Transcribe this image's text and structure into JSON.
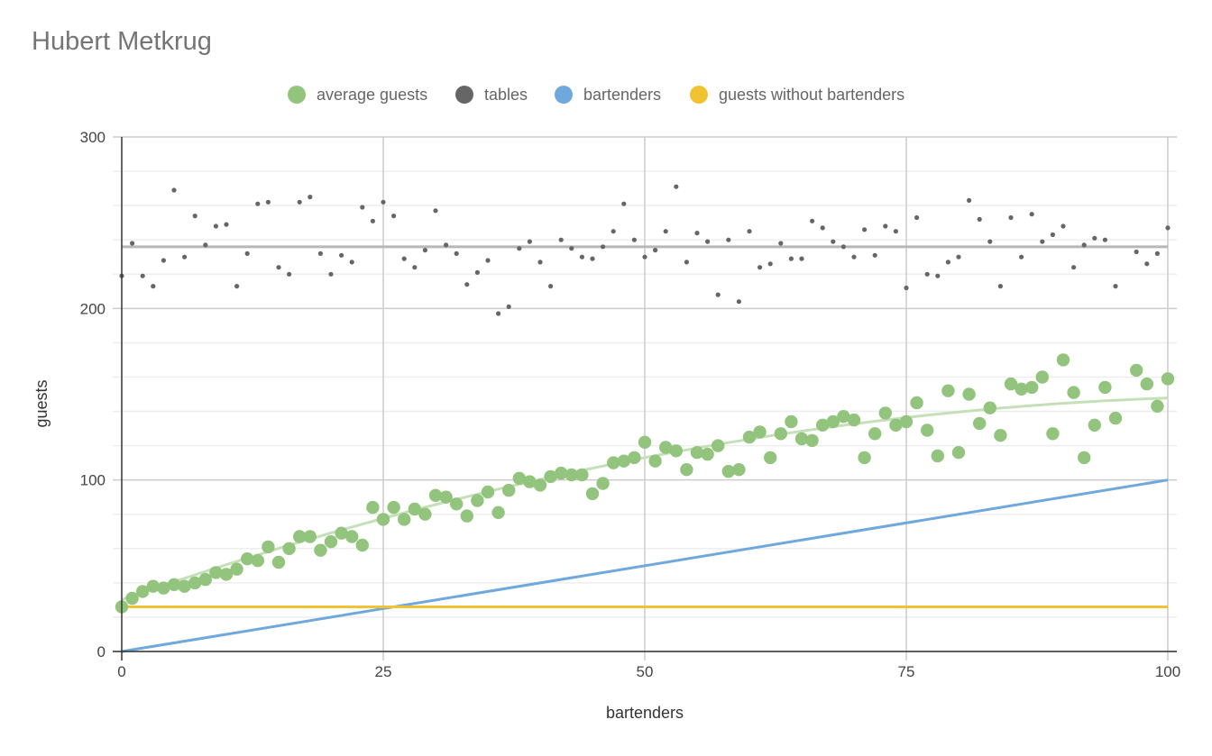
{
  "chart_data": {
    "type": "scatter",
    "title": "Hubert Metkrug",
    "xlabel": "bartenders",
    "ylabel": "guests",
    "xlim": [
      0,
      100
    ],
    "ylim": [
      0,
      300
    ],
    "x_ticks": [
      "0",
      "25",
      "50",
      "75",
      "100"
    ],
    "y_ticks": [
      "0",
      "100",
      "200",
      "300"
    ],
    "grid": true,
    "legend_position": "top",
    "series": [
      {
        "name": "average guests",
        "kind": "scatter",
        "color": "#93c47d",
        "trendline": {
          "type": "polynomial",
          "values_at_x": [
            [
              0,
              29
            ],
            [
              25,
              80
            ],
            [
              50,
              113
            ],
            [
              75,
              134
            ],
            [
              100,
              149
            ]
          ],
          "color": "#c5e0b9"
        },
        "x": [
          0,
          1,
          2,
          3,
          4,
          5,
          6,
          7,
          8,
          9,
          10,
          11,
          12,
          13,
          14,
          15,
          16,
          17,
          18,
          19,
          20,
          21,
          22,
          23,
          24,
          25,
          26,
          27,
          28,
          29,
          30,
          31,
          32,
          33,
          34,
          35,
          36,
          37,
          38,
          39,
          40,
          41,
          42,
          43,
          44,
          45,
          46,
          47,
          48,
          49,
          50,
          51,
          52,
          53,
          54,
          55,
          56,
          57,
          58,
          59,
          60,
          61,
          62,
          63,
          64,
          65,
          66,
          67,
          68,
          69,
          70,
          71,
          72,
          73,
          74,
          75,
          76,
          77,
          78,
          79,
          80,
          81,
          82,
          83,
          84,
          85,
          86,
          87,
          88,
          89,
          90,
          91,
          92,
          93,
          94,
          95,
          97,
          98,
          99,
          100
        ],
        "values": [
          26,
          31,
          35,
          38,
          37,
          39,
          38,
          40,
          42,
          46,
          45,
          48,
          54,
          53,
          61,
          52,
          60,
          67,
          67,
          59,
          64,
          69,
          67,
          62,
          84,
          77,
          84,
          77,
          83,
          80,
          91,
          90,
          86,
          79,
          88,
          93,
          81,
          94,
          101,
          99,
          97,
          102,
          104,
          103,
          103,
          92,
          98,
          110,
          111,
          113,
          122,
          111,
          119,
          117,
          106,
          116,
          115,
          120,
          105,
          106,
          125,
          128,
          113,
          127,
          134,
          124,
          123,
          132,
          134,
          137,
          135,
          113,
          127,
          139,
          132,
          134,
          145,
          129,
          114,
          152,
          116,
          150,
          133,
          142,
          126,
          156,
          153,
          154,
          160,
          127,
          170,
          151,
          113,
          132,
          154,
          136,
          164,
          156,
          143,
          159
        ]
      },
      {
        "name": "tables",
        "kind": "scatter",
        "color": "#666666",
        "trendline": {
          "type": "linear",
          "value": 236,
          "color": "#b7b7b7"
        },
        "x": [
          0,
          1,
          2,
          3,
          4,
          5,
          6,
          7,
          8,
          9,
          10,
          11,
          12,
          13,
          14,
          15,
          16,
          17,
          18,
          19,
          20,
          21,
          22,
          23,
          24,
          25,
          26,
          27,
          28,
          29,
          30,
          31,
          32,
          33,
          34,
          35,
          36,
          37,
          38,
          39,
          40,
          41,
          42,
          43,
          44,
          45,
          46,
          47,
          48,
          49,
          50,
          51,
          52,
          53,
          54,
          55,
          56,
          57,
          58,
          59,
          60,
          61,
          62,
          63,
          64,
          65,
          66,
          67,
          68,
          69,
          70,
          71,
          72,
          73,
          74,
          75,
          76,
          77,
          78,
          79,
          80,
          81,
          82,
          83,
          84,
          85,
          86,
          87,
          88,
          89,
          90,
          91,
          92,
          93,
          94,
          95,
          97,
          98,
          99,
          100
        ],
        "values": [
          219,
          238,
          219,
          213,
          228,
          269,
          230,
          254,
          237,
          248,
          249,
          213,
          232,
          261,
          262,
          224,
          220,
          262,
          265,
          232,
          220,
          231,
          227,
          259,
          251,
          262,
          254,
          229,
          224,
          234,
          257,
          237,
          232,
          214,
          221,
          228,
          197,
          201,
          235,
          239,
          227,
          213,
          240,
          235,
          230,
          229,
          236,
          245,
          261,
          240,
          230,
          234,
          245,
          271,
          227,
          244,
          239,
          208,
          240,
          204,
          245,
          224,
          226,
          238,
          229,
          229,
          251,
          247,
          239,
          236,
          230,
          246,
          231,
          248,
          245,
          212,
          253,
          220,
          219,
          227,
          230,
          263,
          252,
          239,
          213,
          253,
          230,
          255,
          239,
          243,
          248,
          224,
          237,
          241,
          240,
          213,
          233,
          226,
          232,
          247
        ]
      },
      {
        "name": "bartenders",
        "kind": "line",
        "color": "#6fa8dc",
        "x": [
          0,
          100
        ],
        "values": [
          0,
          100
        ]
      },
      {
        "name": "guests without bartenders",
        "kind": "line",
        "color": "#f1c232",
        "x": [
          0,
          100
        ],
        "values": [
          26,
          26
        ]
      }
    ]
  }
}
